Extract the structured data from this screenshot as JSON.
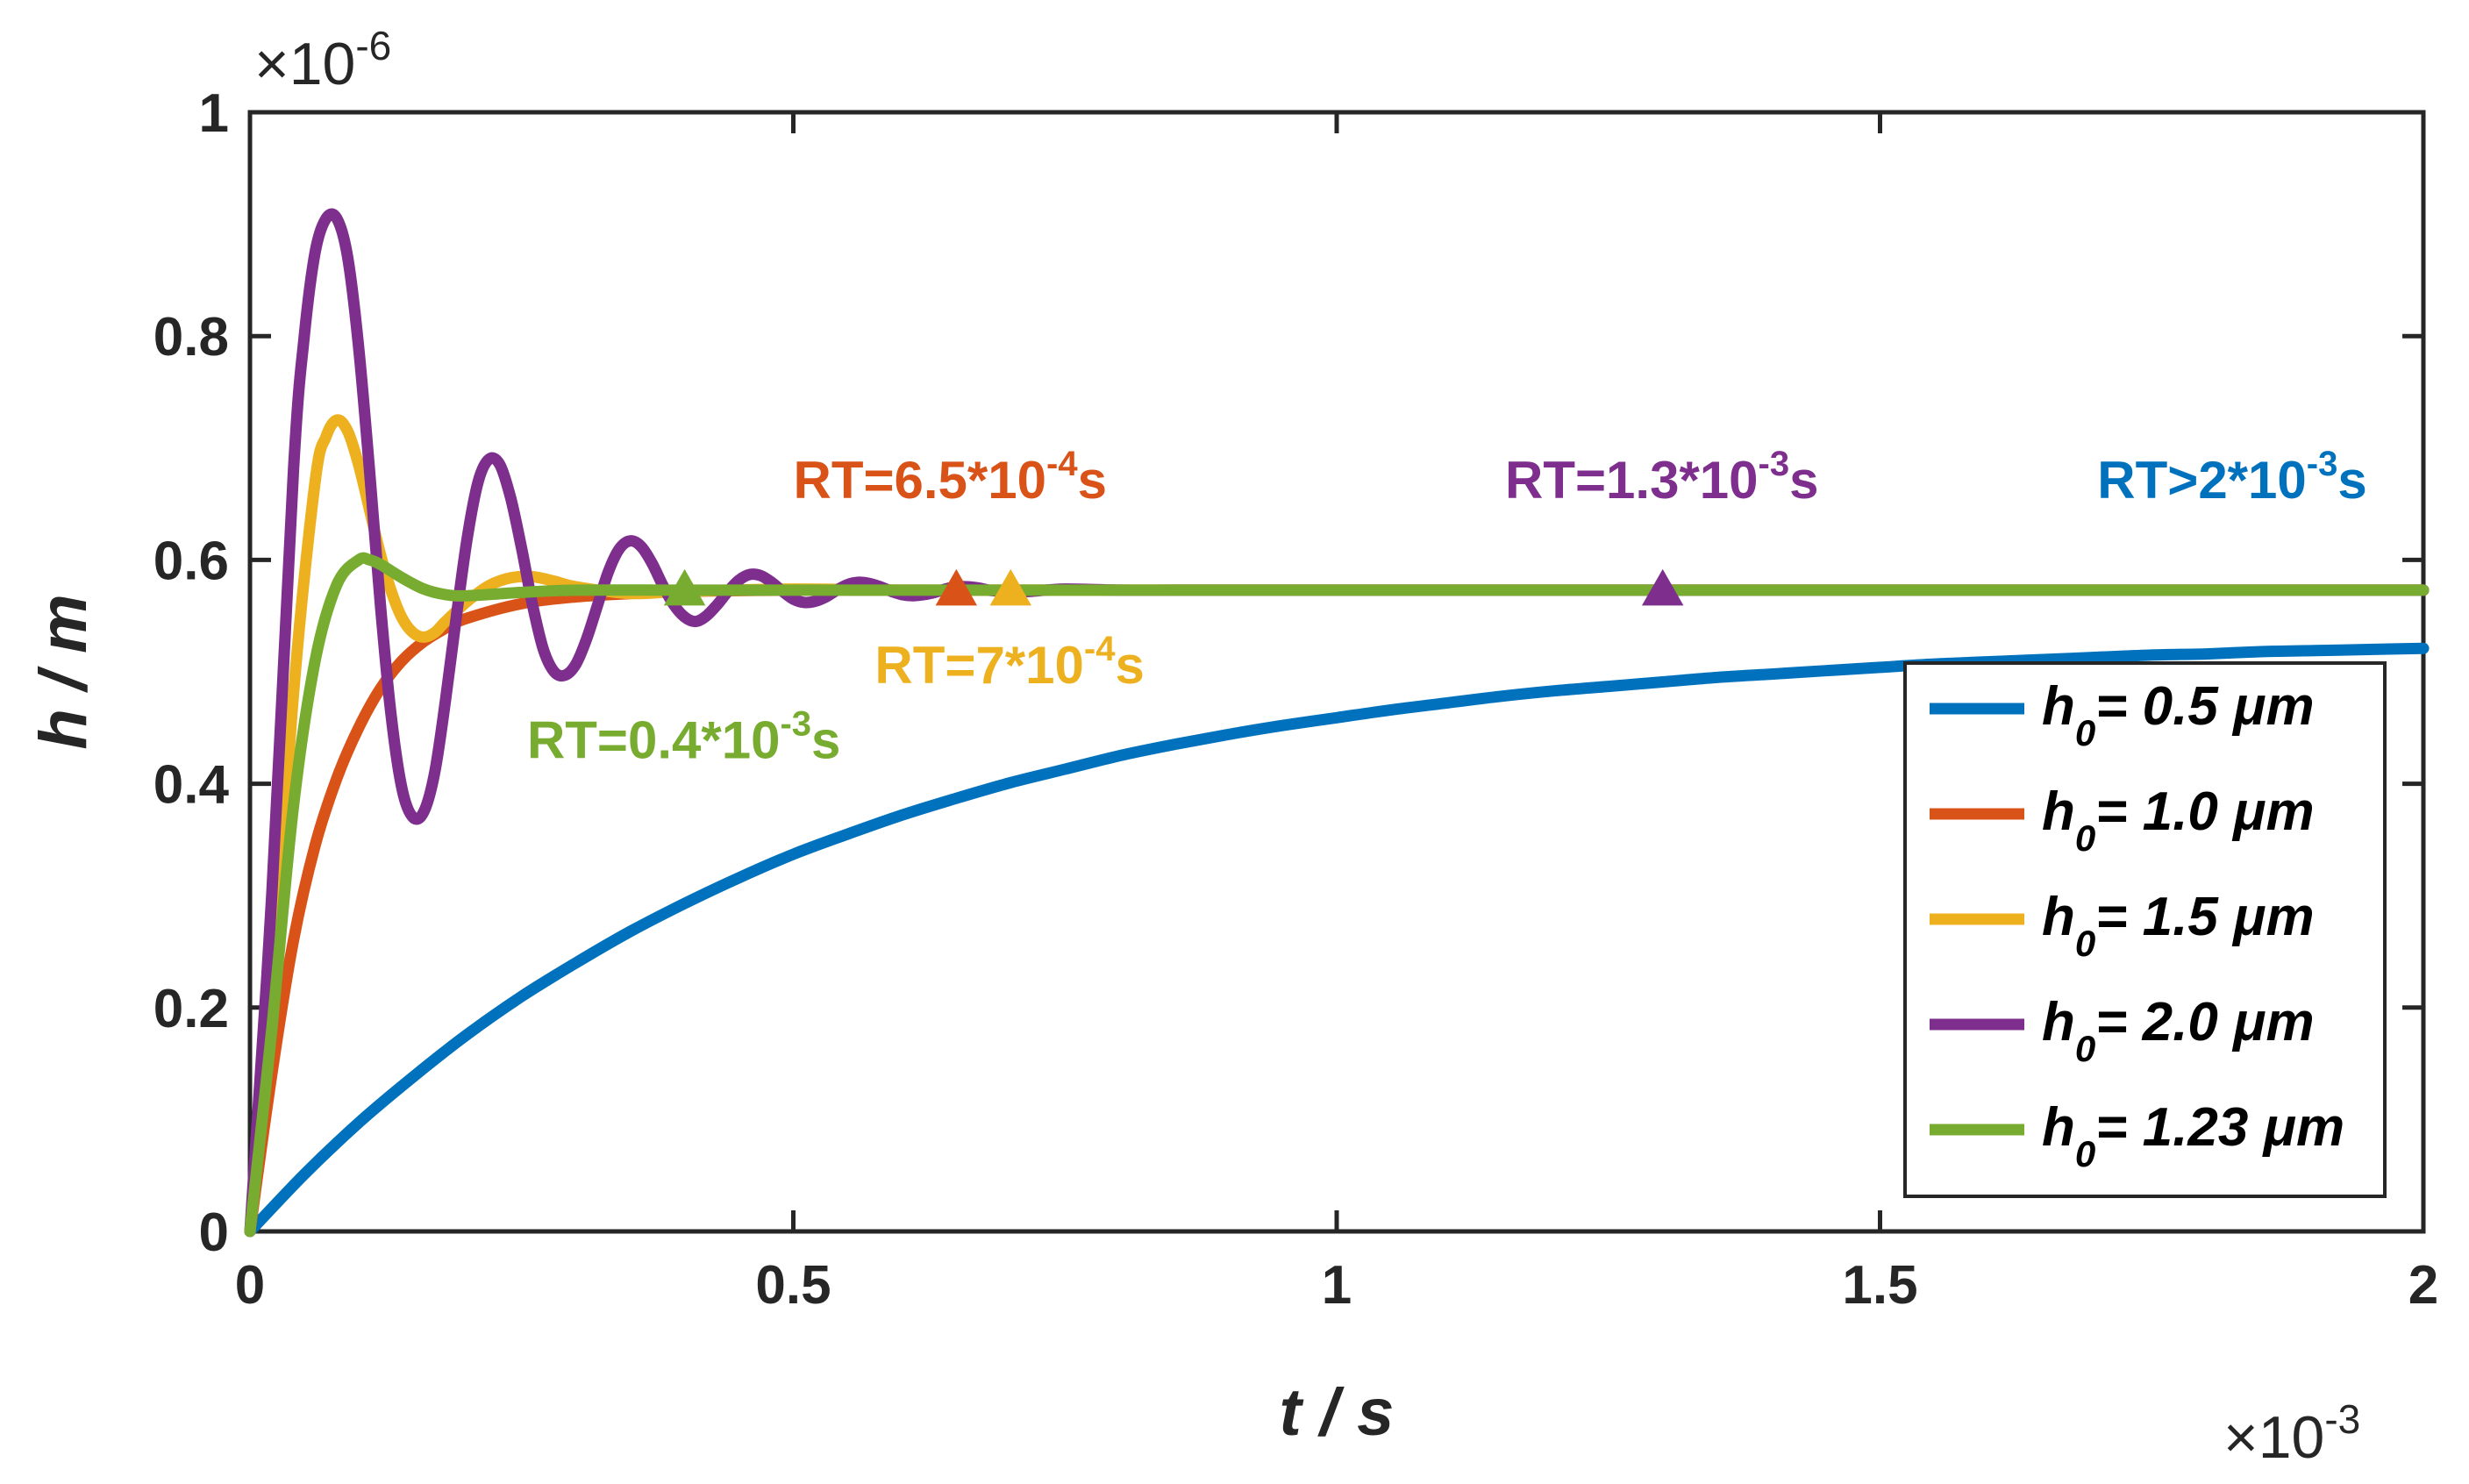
{
  "chart_data": {
    "type": "line",
    "xlabel": "t / s",
    "ylabel": "h / m",
    "x_multiplier": "×10",
    "x_multiplier_exp": "-3",
    "y_multiplier": "×10",
    "y_multiplier_exp": "-6",
    "xlim": [
      0,
      2
    ],
    "ylim": [
      0,
      1
    ],
    "x_ticks": [
      0,
      0.5,
      1,
      1.5,
      2
    ],
    "x_tick_labels": [
      "0",
      "0.5",
      "1",
      "1.5",
      "2"
    ],
    "y_ticks": [
      0,
      0.2,
      0.4,
      0.6,
      0.8,
      1
    ],
    "y_tick_labels": [
      "0",
      "0.2",
      "0.4",
      "0.6",
      "0.8",
      "1"
    ],
    "grid": false,
    "legend_position": "bottom-right",
    "series": [
      {
        "name": "h0 = 0.5 μm",
        "legend_main": "h",
        "legend_sub": "0",
        "legend_rest": "= 0.5 μm",
        "color": "#0072BD",
        "x": [
          0,
          0.05,
          0.1,
          0.15,
          0.2,
          0.25,
          0.3,
          0.35,
          0.4,
          0.45,
          0.5,
          0.55,
          0.6,
          0.65,
          0.7,
          0.75,
          0.8,
          0.85,
          0.9,
          0.95,
          1.0,
          1.05,
          1.1,
          1.15,
          1.2,
          1.25,
          1.3,
          1.35,
          1.4,
          1.45,
          1.5,
          1.55,
          1.6,
          1.65,
          1.7,
          1.75,
          1.8,
          1.85,
          1.9,
          1.95,
          2.0
        ],
        "y": [
          0,
          0.051,
          0.097,
          0.138,
          0.176,
          0.21,
          0.24,
          0.268,
          0.293,
          0.316,
          0.337,
          0.355,
          0.372,
          0.387,
          0.401,
          0.413,
          0.425,
          0.435,
          0.444,
          0.452,
          0.459,
          0.466,
          0.472,
          0.478,
          0.483,
          0.487,
          0.491,
          0.495,
          0.498,
          0.501,
          0.504,
          0.507,
          0.509,
          0.511,
          0.513,
          0.515,
          0.516,
          0.518,
          0.519,
          0.52,
          0.521
        ]
      },
      {
        "name": "h0 = 1.0 μm",
        "legend_main": "h",
        "legend_sub": "0",
        "legend_rest": "= 1.0 μm",
        "color": "#D95319",
        "x": [
          0,
          0.02,
          0.04,
          0.06,
          0.08,
          0.1,
          0.12,
          0.14,
          0.16,
          0.18,
          0.2,
          0.25,
          0.3,
          0.35,
          0.4,
          0.5,
          0.6,
          0.7,
          0.8,
          0.9,
          1.0,
          1.2,
          1.4,
          1.6,
          1.8,
          2.0
        ],
        "y": [
          0,
          0.14,
          0.26,
          0.345,
          0.405,
          0.45,
          0.485,
          0.51,
          0.527,
          0.539,
          0.548,
          0.561,
          0.567,
          0.57,
          0.572,
          0.573,
          0.573,
          0.573,
          0.573,
          0.573,
          0.573,
          0.573,
          0.573,
          0.573,
          0.573,
          0.573
        ]
      },
      {
        "name": "h0 = 1.5 μm",
        "legend_main": "h",
        "legend_sub": "0",
        "legend_rest": "= 1.5 μm",
        "color": "#EDB120",
        "x": [
          0,
          0.02,
          0.04,
          0.06,
          0.07,
          0.08,
          0.09,
          0.1,
          0.11,
          0.12,
          0.13,
          0.14,
          0.15,
          0.16,
          0.17,
          0.18,
          0.2,
          0.22,
          0.24,
          0.26,
          0.28,
          0.3,
          0.35,
          0.4,
          0.5,
          0.6,
          0.7,
          0.8,
          1.0,
          1.2,
          1.5,
          2.0
        ],
        "y": [
          0,
          0.2,
          0.48,
          0.67,
          0.71,
          0.725,
          0.715,
          0.685,
          0.645,
          0.605,
          0.572,
          0.548,
          0.535,
          0.531,
          0.535,
          0.545,
          0.563,
          0.577,
          0.584,
          0.585,
          0.581,
          0.576,
          0.57,
          0.572,
          0.574,
          0.573,
          0.573,
          0.573,
          0.573,
          0.573,
          0.573,
          0.573
        ]
      },
      {
        "name": "h0 = 2.0 μm",
        "legend_main": "h",
        "legend_sub": "0",
        "legend_rest": "= 2.0 μm",
        "color": "#7E2F8E",
        "x": [
          0,
          0.02,
          0.04,
          0.05,
          0.06,
          0.07,
          0.08,
          0.09,
          0.1,
          0.11,
          0.12,
          0.13,
          0.14,
          0.15,
          0.16,
          0.17,
          0.18,
          0.19,
          0.2,
          0.21,
          0.22,
          0.23,
          0.24,
          0.25,
          0.26,
          0.27,
          0.28,
          0.29,
          0.3,
          0.31,
          0.32,
          0.33,
          0.34,
          0.35,
          0.36,
          0.37,
          0.38,
          0.39,
          0.4,
          0.41,
          0.42,
          0.43,
          0.44,
          0.45,
          0.46,
          0.47,
          0.48,
          0.49,
          0.5,
          0.51,
          0.52,
          0.53,
          0.54,
          0.55,
          0.56,
          0.57,
          0.58,
          0.59,
          0.6,
          0.61,
          0.62,
          0.63,
          0.64,
          0.65,
          0.66,
          0.67,
          0.68,
          0.69,
          0.7,
          0.72,
          0.75,
          0.8,
          0.85,
          0.9,
          1.0,
          1.2,
          1.5,
          2.0
        ],
        "y": [
          0,
          0.3,
          0.68,
          0.8,
          0.875,
          0.905,
          0.905,
          0.87,
          0.79,
          0.68,
          0.56,
          0.46,
          0.395,
          0.37,
          0.375,
          0.41,
          0.475,
          0.55,
          0.62,
          0.67,
          0.69,
          0.685,
          0.655,
          0.61,
          0.56,
          0.52,
          0.5,
          0.497,
          0.507,
          0.53,
          0.56,
          0.59,
          0.61,
          0.617,
          0.612,
          0.597,
          0.577,
          0.56,
          0.549,
          0.545,
          0.55,
          0.56,
          0.572,
          0.582,
          0.587,
          0.586,
          0.58,
          0.572,
          0.565,
          0.562,
          0.563,
          0.567,
          0.573,
          0.578,
          0.58,
          0.579,
          0.576,
          0.572,
          0.569,
          0.568,
          0.569,
          0.571,
          0.574,
          0.576,
          0.576,
          0.575,
          0.573,
          0.572,
          0.571,
          0.572,
          0.574,
          0.573,
          0.573,
          0.573,
          0.573,
          0.573,
          0.573,
          0.573
        ]
      },
      {
        "name": "h0 = 1.23 μm",
        "legend_main": "h",
        "legend_sub": "0",
        "legend_rest": "= 1.23 μm",
        "color": "#77AC30",
        "x": [
          0,
          0.02,
          0.04,
          0.06,
          0.08,
          0.1,
          0.11,
          0.12,
          0.14,
          0.16,
          0.18,
          0.2,
          0.25,
          0.3,
          0.4,
          0.5,
          0.7,
          1.0,
          1.5,
          2.0
        ],
        "y": [
          0,
          0.18,
          0.38,
          0.51,
          0.578,
          0.6,
          0.6,
          0.596,
          0.584,
          0.574,
          0.569,
          0.568,
          0.571,
          0.573,
          0.573,
          0.573,
          0.573,
          0.573,
          0.573,
          0.573
        ]
      }
    ],
    "rt_markers": [
      {
        "x": 0.4,
        "y": 0.573,
        "color": "#77AC30"
      },
      {
        "x": 0.65,
        "y": 0.573,
        "color": "#D95319"
      },
      {
        "x": 0.7,
        "y": 0.573,
        "color": "#EDB120"
      },
      {
        "x": 1.3,
        "y": 0.573,
        "color": "#7E2F8E"
      }
    ],
    "annotations": [
      {
        "main": "RT=6.5*10",
        "sup": "-4",
        "tail": "s",
        "color": "#D95319",
        "x": 0.5,
        "y": 0.655
      },
      {
        "main": "RT=1.3*10",
        "sup": "-3",
        "tail": "s",
        "color": "#7E2F8E",
        "x": 1.155,
        "y": 0.655
      },
      {
        "main": "RT>2*10",
        "sup": "-3",
        "tail": "s",
        "color": "#0072BD",
        "x": 1.7,
        "y": 0.655
      },
      {
        "main": "RT=7*10",
        "sup": "-4",
        "tail": "s",
        "color": "#EDB120",
        "x": 0.575,
        "y": 0.49
      },
      {
        "main": "RT=0.4*10",
        "sup": "-3",
        "tail": "s",
        "color": "#77AC30",
        "x": 0.255,
        "y": 0.423
      }
    ]
  }
}
